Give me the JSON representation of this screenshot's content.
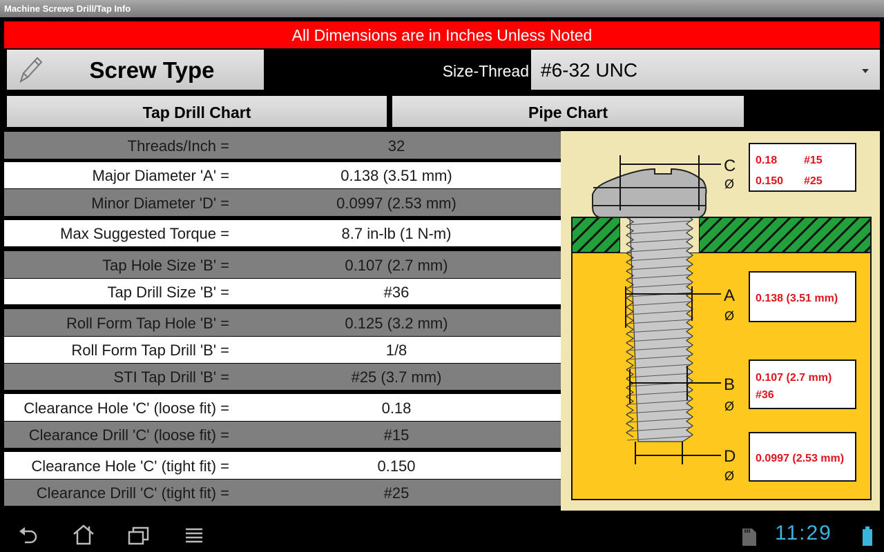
{
  "app": {
    "title": "Machine Screws Drill/Tap Info"
  },
  "banner": "All Dimensions are in Inches Unless Noted",
  "toolbar": {
    "screw_type_label": "Screw Type",
    "size_thread_label": "Size-Thread",
    "size_thread_value": "#6-32 UNC",
    "tap_drill_chart_label": "Tap Drill Chart",
    "pipe_chart_label": "Pipe Chart"
  },
  "specs": [
    {
      "label": "Threads/Inch =",
      "value": "32"
    },
    {
      "label": "Major Diameter 'A' =",
      "value": "0.138 (3.51 mm)"
    },
    {
      "label": "Minor Diameter 'D' =",
      "value": "0.0997 (2.53 mm)"
    },
    {
      "label": "Max Suggested Torque =",
      "value": "8.7 in-lb (1 N-m)"
    },
    {
      "label": "Tap Hole Size 'B' =",
      "value": "0.107 (2.7 mm)"
    },
    {
      "label": "Tap Drill Size 'B' =",
      "value": "#36"
    },
    {
      "label": "Roll Form Tap Hole 'B' =",
      "value": "0.125 (3.2 mm)"
    },
    {
      "label": "Roll Form Tap Drill 'B' =",
      "value": "1/8"
    },
    {
      "label": "STI Tap Drill 'B' =",
      "value": "#25 (3.7 mm)"
    },
    {
      "label": "Clearance Hole 'C' (loose fit) =",
      "value": "0.18"
    },
    {
      "label": "Clearance Drill 'C' (loose fit) =",
      "value": "#15"
    },
    {
      "label": "Clearance Hole 'C' (tight fit) =",
      "value": "0.150"
    },
    {
      "label": "Clearance Drill 'C' (tight fit) =",
      "value": "#25"
    }
  ],
  "diagram": {
    "labels": {
      "c": "C",
      "a": "A",
      "b": "B",
      "d": "D",
      "dia": "Ø"
    },
    "c_box": {
      "loose_hole": "0.18",
      "loose_drill": "#15",
      "tight_hole": "0.150",
      "tight_drill": "#25"
    },
    "a_box": "0.138 (3.51 mm)",
    "b_box": {
      "line1": "0.107 (2.7 mm)",
      "line2": "#36"
    },
    "d_box": "0.0997 (2.53 mm)",
    "colors": {
      "value_text": "#e0141e",
      "material": "#ffc81e",
      "plate": "#22a03c",
      "background": "#f0e6b4"
    }
  },
  "status": {
    "time": "11:29"
  },
  "colors": {
    "banner": "#ff0000",
    "clock": "#3ab4e0"
  }
}
